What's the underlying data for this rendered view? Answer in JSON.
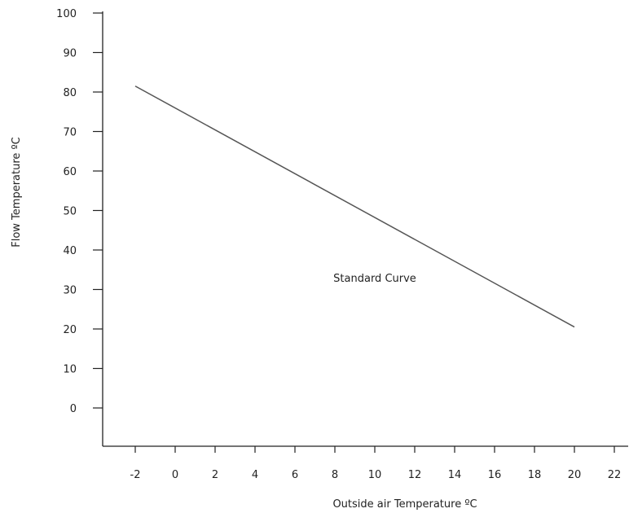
{
  "chart_data": {
    "type": "line",
    "xlabel": "Outside air Temperature ºC",
    "ylabel": "Flow Temperature ºC",
    "x_ticks": [
      "-2",
      "0",
      "2",
      "4",
      "6",
      "8",
      "10",
      "12",
      "14",
      "16",
      "18",
      "20",
      "22"
    ],
    "y_ticks": [
      "0",
      "10",
      "20",
      "30",
      "40",
      "50",
      "60",
      "70",
      "80",
      "90",
      "100"
    ],
    "xlim": [
      -4,
      23
    ],
    "ylim": [
      -10,
      100
    ],
    "grid": false,
    "series": [
      {
        "x": [
          -2,
          20
        ],
        "y": [
          81.5,
          20.5
        ],
        "color": "#555555"
      }
    ],
    "annotations": [
      {
        "text": "Standard Curve",
        "x": 10,
        "y": 33
      }
    ]
  }
}
